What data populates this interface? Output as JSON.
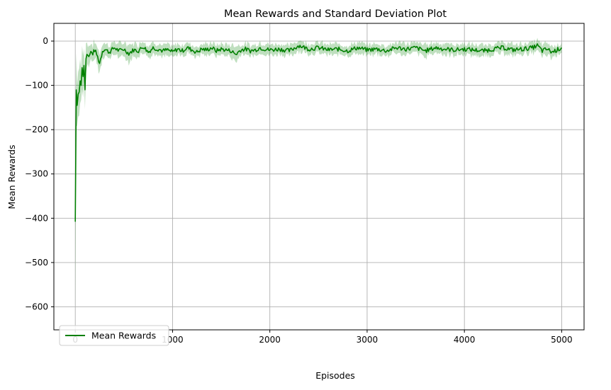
{
  "chart_data": {
    "type": "line",
    "title": "Mean Rewards and Standard Deviation Plot",
    "xlabel": "Episodes",
    "ylabel": "Mean Rewards",
    "xlim": [
      -220,
      5230
    ],
    "ylim": [
      -652,
      40
    ],
    "x_ticks": [
      0,
      1000,
      2000,
      3000,
      4000,
      5000
    ],
    "y_ticks": [
      0,
      -100,
      -200,
      -300,
      -400,
      -500,
      -600
    ],
    "grid": true,
    "legend": {
      "position": "lower-left",
      "entries": [
        "Mean Rewards"
      ]
    },
    "colors": {
      "line": "#008000",
      "band": "#008000",
      "grid": "#b0b0b0"
    },
    "series": [
      {
        "name": "Mean Rewards",
        "x": [
          0,
          10,
          20,
          30,
          40,
          50,
          60,
          70,
          80,
          90,
          100,
          110,
          120,
          140,
          160,
          180,
          200,
          220,
          250,
          280,
          300,
          350,
          400,
          450,
          500,
          550,
          600,
          650,
          700,
          750,
          800,
          850,
          900,
          950,
          1000,
          1050,
          1100,
          1150,
          1200,
          1250,
          1300,
          1350,
          1400,
          1450,
          1500,
          1550,
          1600,
          1650,
          1700,
          1750,
          1800,
          1850,
          1900,
          1950,
          2000,
          2100,
          2200,
          2300,
          2400,
          2500,
          2600,
          2700,
          2800,
          2900,
          3000,
          3100,
          3200,
          3300,
          3400,
          3500,
          3600,
          3700,
          3800,
          3900,
          4000,
          4100,
          4200,
          4300,
          4400,
          4500,
          4600,
          4700,
          4750,
          4800,
          4850,
          4900,
          4950,
          5000
        ],
        "y": [
          -408,
          -110,
          -145,
          -120,
          -115,
          -90,
          -100,
          -60,
          -80,
          -55,
          -110,
          -40,
          -30,
          -35,
          -25,
          -28,
          -20,
          -30,
          -50,
          -22,
          -18,
          -25,
          -15,
          -22,
          -18,
          -28,
          -20,
          -22,
          -12,
          -25,
          -15,
          -18,
          -22,
          -20,
          -25,
          -18,
          -22,
          -15,
          -20,
          -25,
          -18,
          -20,
          -15,
          -22,
          -18,
          -20,
          -22,
          -30,
          -20,
          -18,
          -22,
          -20,
          -15,
          -18,
          -20,
          -18,
          -22,
          -10,
          -18,
          -15,
          -20,
          -18,
          -22,
          -15,
          -20,
          -18,
          -22,
          -15,
          -18,
          -15,
          -22,
          -15,
          -18,
          -20,
          -18,
          -20,
          -22,
          -18,
          -15,
          -20,
          -18,
          -15,
          -10,
          -22,
          -18,
          -25,
          -20,
          -15
        ],
        "std": [
          200,
          80,
          60,
          60,
          55,
          50,
          45,
          40,
          45,
          40,
          50,
          30,
          25,
          25,
          20,
          20,
          18,
          20,
          22,
          15,
          14,
          15,
          14,
          15,
          15,
          18,
          15,
          15,
          14,
          15,
          12,
          12,
          12,
          12,
          12,
          12,
          12,
          12,
          12,
          12,
          12,
          12,
          12,
          12,
          12,
          12,
          14,
          20,
          12,
          12,
          12,
          12,
          12,
          12,
          12,
          12,
          12,
          12,
          12,
          12,
          12,
          12,
          12,
          12,
          12,
          12,
          12,
          12,
          12,
          12,
          14,
          12,
          12,
          12,
          12,
          12,
          12,
          12,
          12,
          12,
          12,
          12,
          12,
          14,
          14,
          14,
          12,
          12
        ]
      }
    ]
  }
}
